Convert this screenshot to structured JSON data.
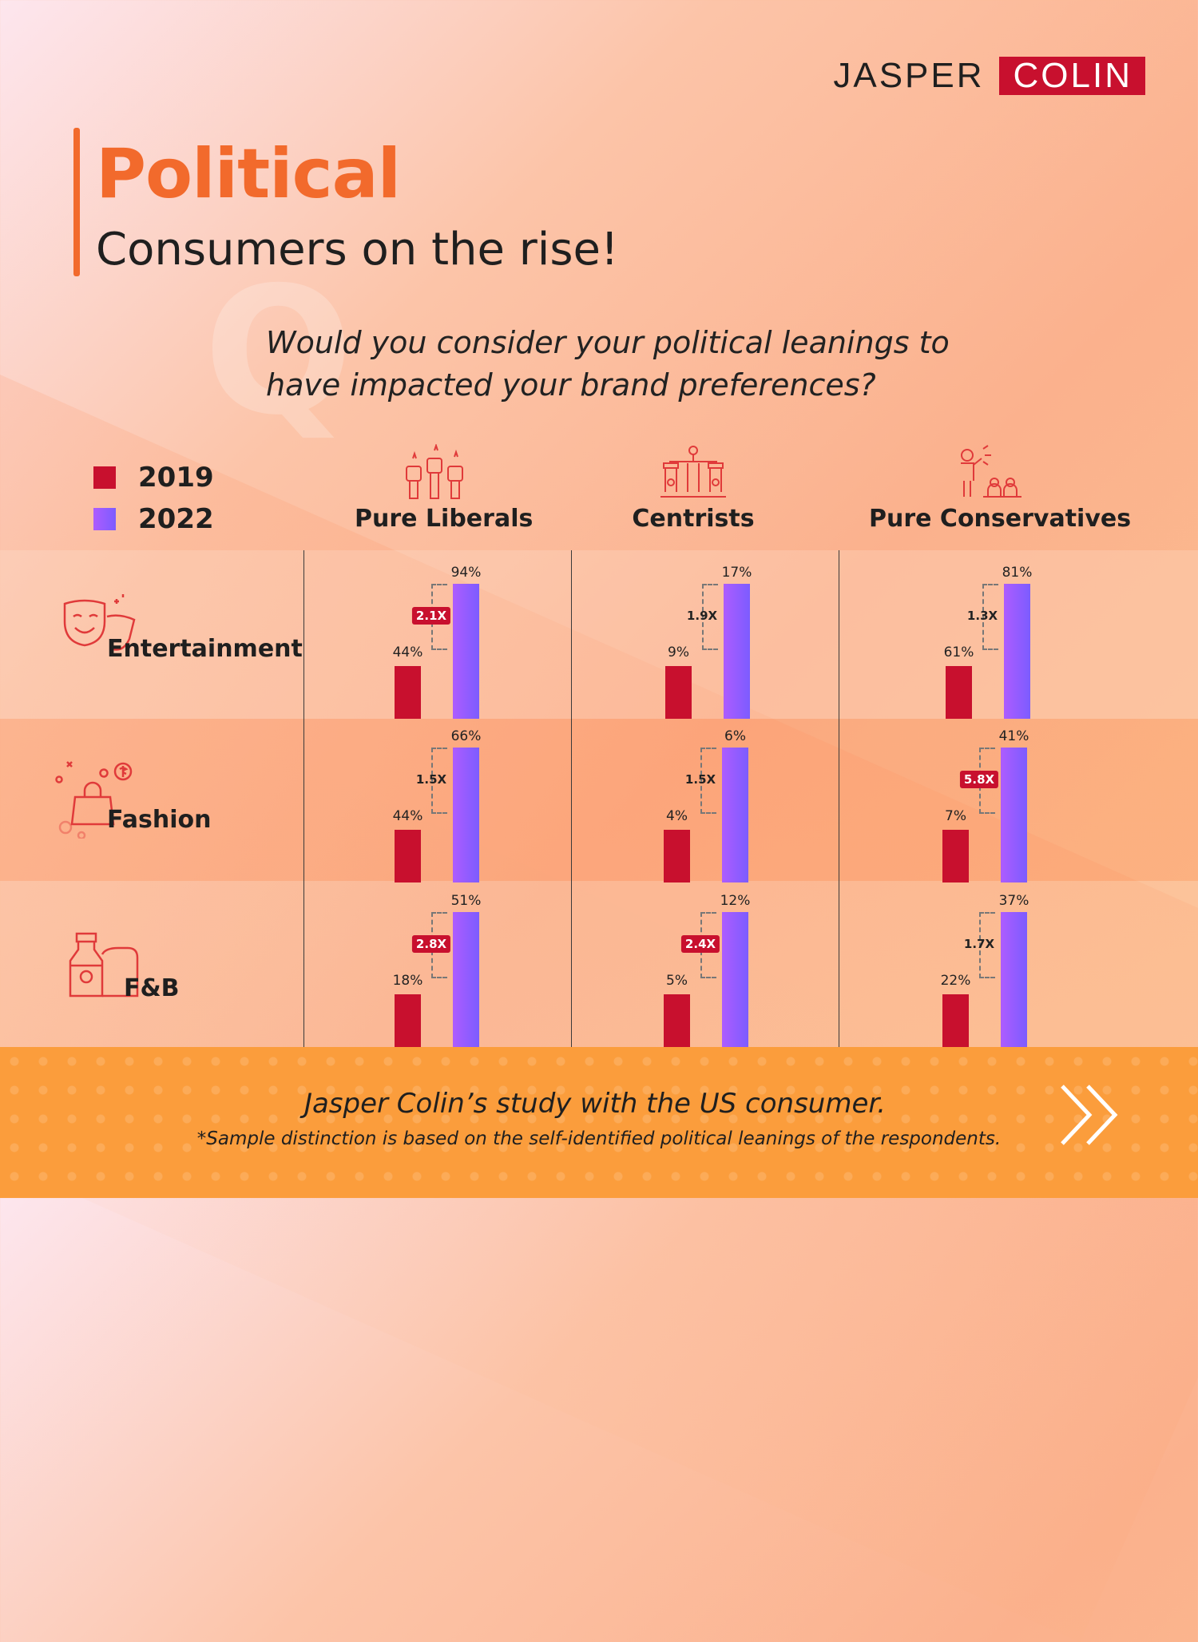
{
  "brand": {
    "part1": "JASPER",
    "part2": "COLIN",
    "accent_color": "#c8102e"
  },
  "title": "Political",
  "subtitle": "Consumers on the rise!",
  "question": "Would you consider your political leanings to have impacted your brand preferences?",
  "legend": [
    {
      "label": "2019",
      "color": "#c8102e"
    },
    {
      "label": "2022",
      "color": "#9b5cff"
    }
  ],
  "footer": {
    "main": "Jasper Colin’s study with the US consumer.",
    "note": "*Sample distinction is based on the self-identified political leanings of the respondents."
  },
  "chart_data": {
    "type": "bar",
    "columns": [
      {
        "label": "Pure Liberals",
        "icon": "protest-fists-icon"
      },
      {
        "label": "Centrists",
        "icon": "balance-podium-icon"
      },
      {
        "label": "Pure Conservatives",
        "icon": "speaker-audience-icon"
      }
    ],
    "rows": [
      {
        "label": "Entertainment",
        "icon": "theater-masks-icon"
      },
      {
        "label": "Fashion",
        "icon": "shopping-bag-icon"
      },
      {
        "label": "F&B",
        "icon": "food-bottle-icon"
      }
    ],
    "series_labels": [
      "2019",
      "2022"
    ],
    "cells": [
      [
        {
          "v2019": 44,
          "v2022": 94,
          "l2019": "44%",
          "l2022": "94%",
          "mult": "2.1X",
          "highlight": true
        },
        {
          "v2019": 9,
          "v2022": 17,
          "l2019": "9%",
          "l2022": "17%",
          "mult": "1.9X",
          "highlight": false
        },
        {
          "v2019": 61,
          "v2022": 81,
          "l2019": "61%",
          "l2022": "81%",
          "mult": "1.3X",
          "highlight": false
        }
      ],
      [
        {
          "v2019": 44,
          "v2022": 66,
          "l2019": "44%",
          "l2022": "66%",
          "mult": "1.5X",
          "highlight": false
        },
        {
          "v2019": 4,
          "v2022": 6,
          "l2019": "4%",
          "l2022": "6%",
          "mult": "1.5X",
          "highlight": false
        },
        {
          "v2019": 7,
          "v2022": 41,
          "l2019": "7%",
          "l2022": "41%",
          "mult": "5.8X",
          "highlight": true
        }
      ],
      [
        {
          "v2019": 18,
          "v2022": 51,
          "l2019": "18%",
          "l2022": "51%",
          "mult": "2.8X",
          "highlight": true
        },
        {
          "v2019": 5,
          "v2022": 12,
          "l2019": "5%",
          "l2022": "12%",
          "mult": "2.4X",
          "highlight": true
        },
        {
          "v2019": 22,
          "v2022": 37,
          "l2019": "22%",
          "l2022": "37%",
          "mult": "1.7X",
          "highlight": false
        }
      ]
    ]
  }
}
